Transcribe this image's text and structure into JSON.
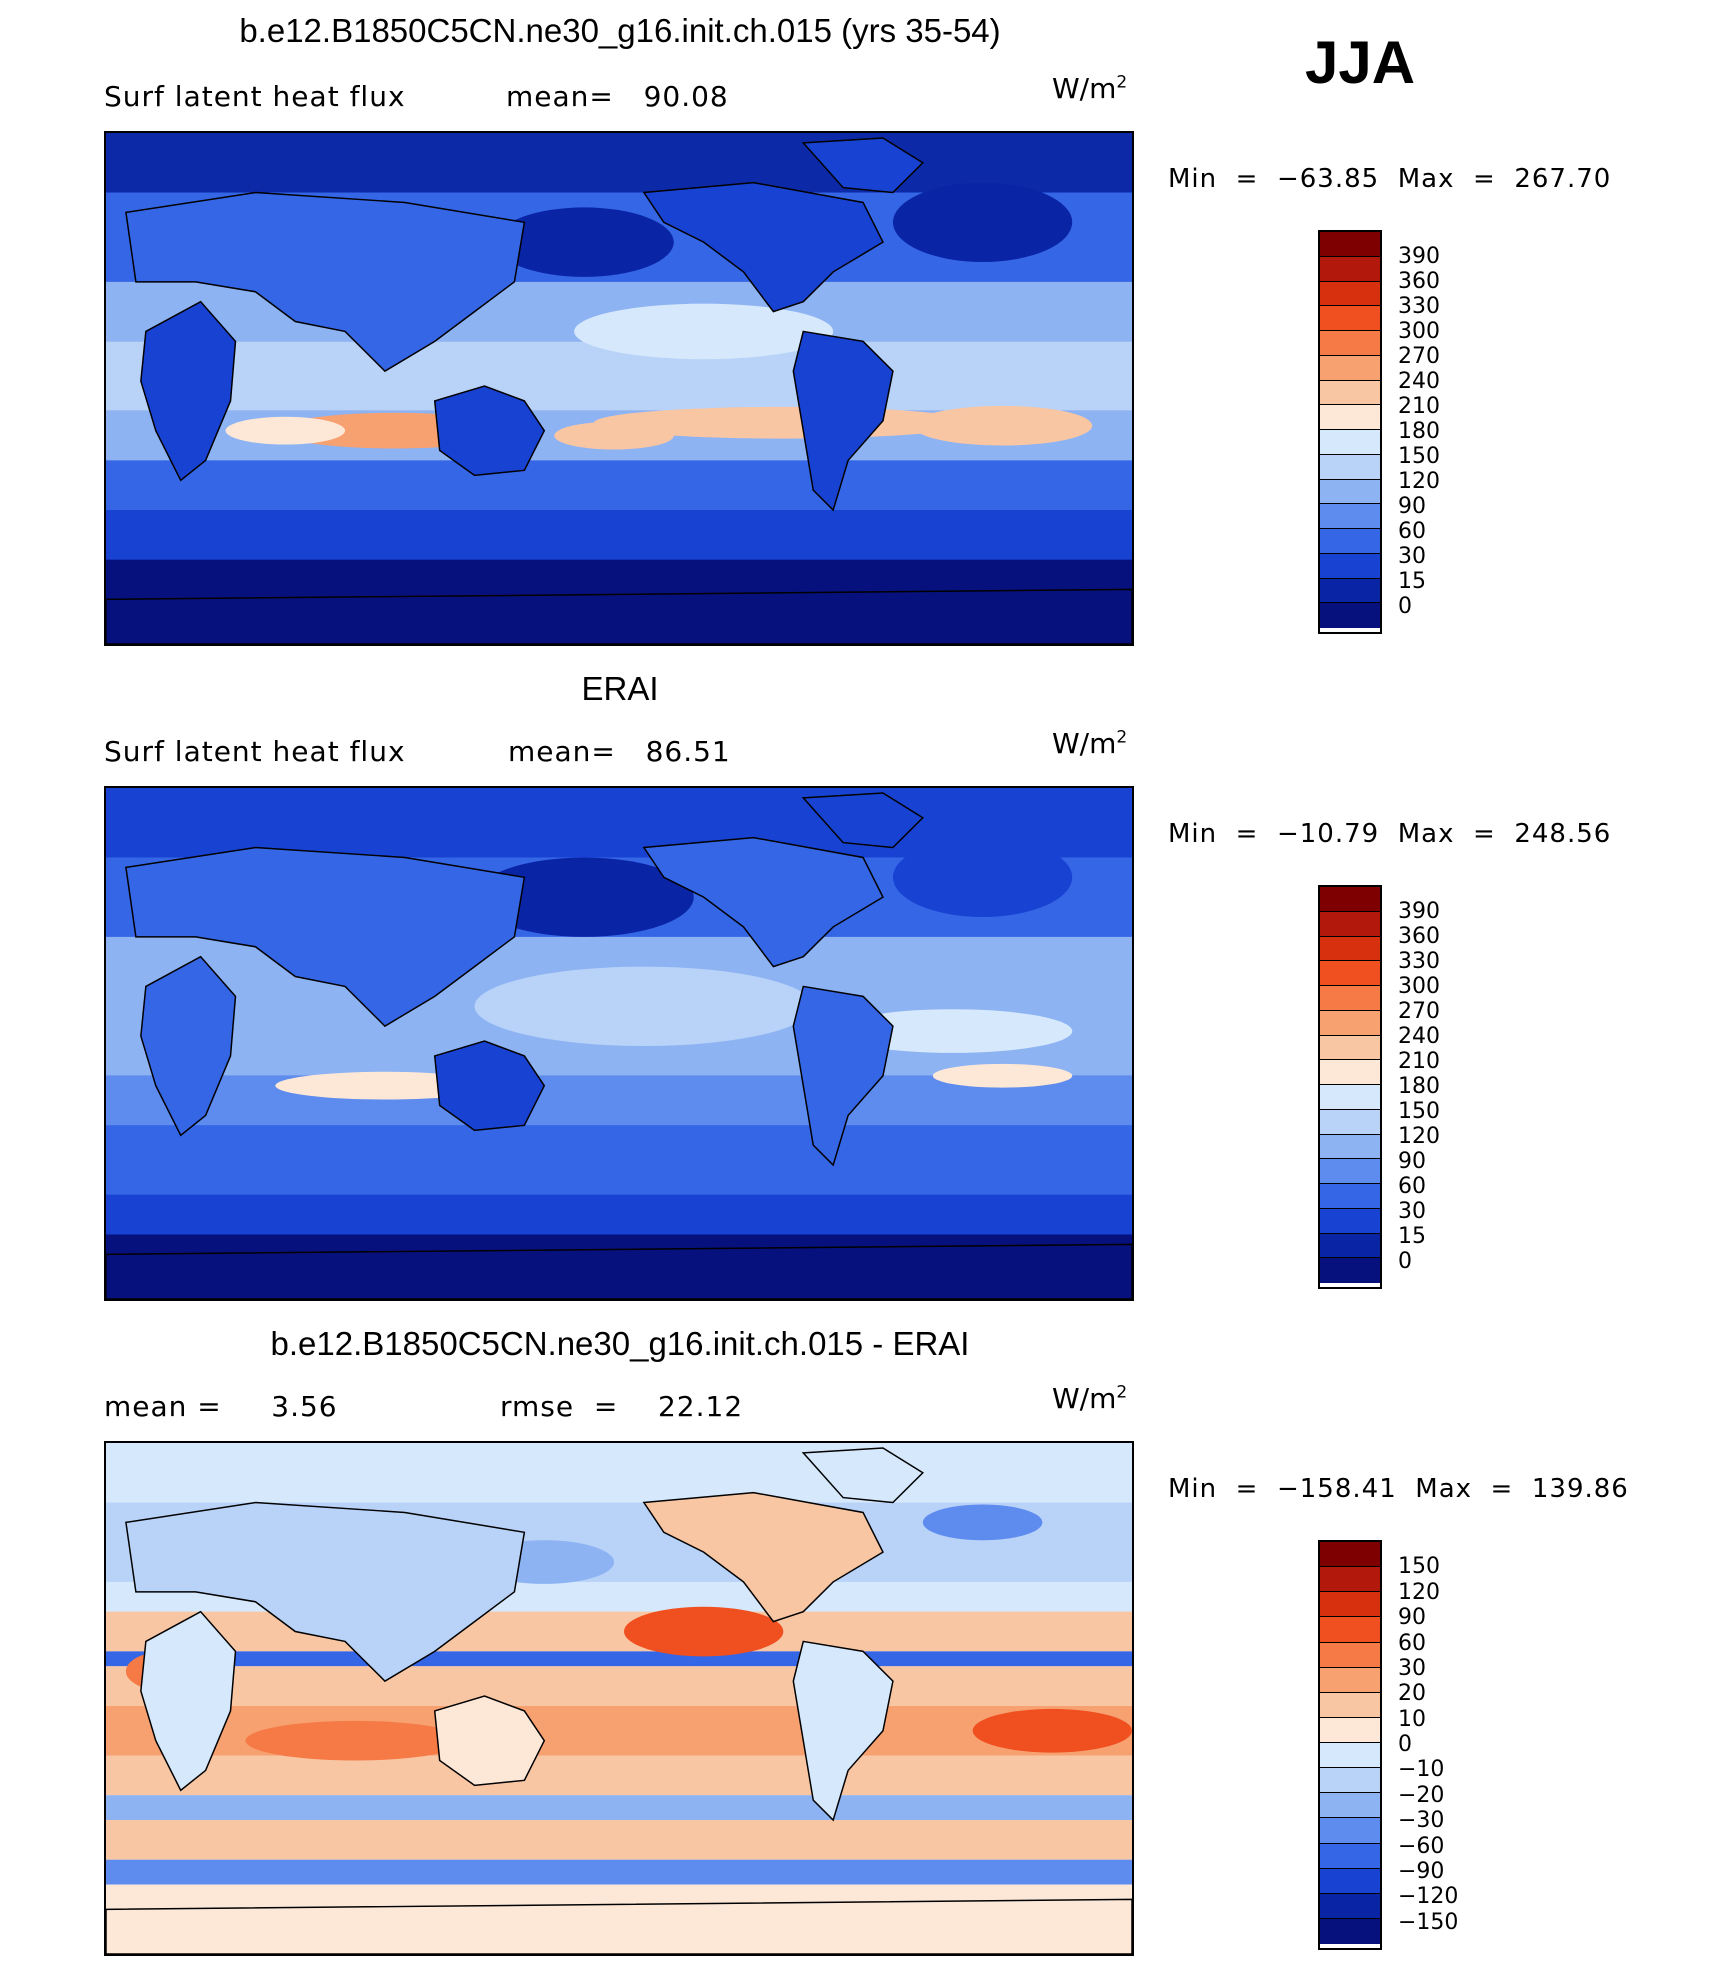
{
  "season": "JJA",
  "units_base": "W/m",
  "units_exp": "2",
  "panels": [
    {
      "title": "b.e12.B1850C5CN.ne30_g16.init.ch.015 (yrs 35-54)",
      "left_text": "Surf latent heat flux",
      "mid_text": "mean=   90.08",
      "minmax": "Min  =  −63.85  Max  =  267.70",
      "colorbar": {
        "labels": [
          "390",
          "360",
          "330",
          "300",
          "270",
          "240",
          "210",
          "180",
          "150",
          "120",
          "90",
          "60",
          "30",
          "15",
          "0"
        ],
        "colors": [
          "#7f0000",
          "#b2180b",
          "#d7300f",
          "#f05020",
          "#f57a45",
          "#f7a070",
          "#f9c6a4",
          "#fde8d8",
          "#d6e8fb",
          "#b8d2f8",
          "#8db3f3",
          "#5e8bee",
          "#3566e6",
          "#1842d2",
          "#0a24a6",
          "#06117e"
        ]
      }
    },
    {
      "title": "ERAI",
      "left_text": "Surf latent heat flux",
      "mid_text": "mean=   86.51",
      "minmax": "Min  =  −10.79  Max  =  248.56",
      "colorbar": {
        "labels": [
          "390",
          "360",
          "330",
          "300",
          "270",
          "240",
          "210",
          "180",
          "150",
          "120",
          "90",
          "60",
          "30",
          "15",
          "0"
        ],
        "colors": [
          "#7f0000",
          "#b2180b",
          "#d7300f",
          "#f05020",
          "#f57a45",
          "#f7a070",
          "#f9c6a4",
          "#fde8d8",
          "#d6e8fb",
          "#b8d2f8",
          "#8db3f3",
          "#5e8bee",
          "#3566e6",
          "#1842d2",
          "#0a24a6",
          "#06117e"
        ]
      }
    },
    {
      "title": "b.e12.B1850C5CN.ne30_g16.init.ch.015 - ERAI",
      "left_text": "mean =     3.56",
      "mid_text": "rmse  =    22.12",
      "minmax": "Min  =  −158.41  Max  =  139.86",
      "colorbar": {
        "labels": [
          "150",
          "120",
          "90",
          "60",
          "30",
          "20",
          "10",
          "0",
          "−10",
          "−20",
          "−30",
          "−60",
          "−90",
          "−120",
          "−150"
        ],
        "colors": [
          "#7f0000",
          "#b2180b",
          "#d7300f",
          "#f05020",
          "#f57a45",
          "#f7a070",
          "#f9c6a4",
          "#fde8d8",
          "#d6e8fb",
          "#b8d2f8",
          "#8db3f3",
          "#5e8bee",
          "#3566e6",
          "#1842d2",
          "#0a24a6",
          "#06117e"
        ]
      }
    }
  ]
}
